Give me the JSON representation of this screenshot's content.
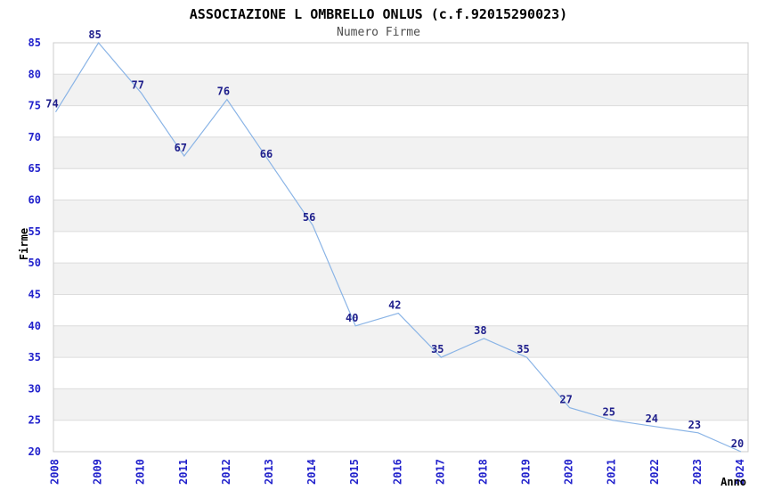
{
  "chart_data": {
    "type": "line",
    "title": "ASSOCIAZIONE L OMBRELLO ONLUS (c.f.92015290023)",
    "subtitle": "Numero Firme",
    "xlabel": "Anno",
    "ylabel": "Firme",
    "categories": [
      "2008",
      "2009",
      "2010",
      "2011",
      "2012",
      "2013",
      "2014",
      "2015",
      "2016",
      "2017",
      "2018",
      "2019",
      "2020",
      "2021",
      "2022",
      "2023",
      "2024"
    ],
    "values": [
      74,
      85,
      77,
      67,
      76,
      66,
      56,
      40,
      42,
      35,
      38,
      35,
      27,
      25,
      24,
      23,
      20
    ],
    "ylim": [
      20,
      85
    ],
    "ytick_step": 5,
    "grid": true,
    "legend": "none",
    "band_fill_alternating": true,
    "colors": {
      "line": "#8ab4e6",
      "data_label": "#1f1f8c",
      "tick_label": "#2222cc",
      "band": "#f2f2f2",
      "gridline": "#dcdcdc",
      "plot_border": "#cccccc",
      "title": "#000000",
      "subtitle": "#4d4d4d",
      "background": "#ffffff"
    }
  }
}
